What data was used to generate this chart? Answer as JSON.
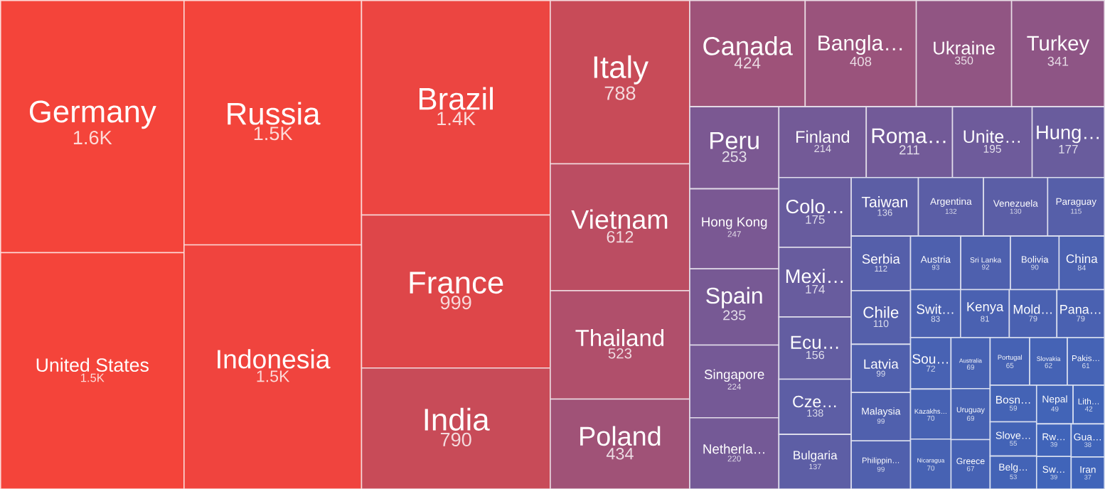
{
  "chart_data": {
    "type": "other",
    "categories": [
      "Germany",
      "United States",
      "Russia",
      "Indonesia",
      "Brazil",
      "France",
      "India",
      "Italy",
      "Vietnam",
      "Thailand",
      "Poland",
      "Canada",
      "Bangla…",
      "Ukraine",
      "Turkey",
      "Peru",
      "Hong Kong",
      "Spain",
      "Singapore",
      "Netherla…",
      "Finland",
      "Roma…",
      "Unite…",
      "Hung…",
      "Colo…",
      "Mexi…",
      "Ecu…",
      "Cze…",
      "Bulgaria",
      "Taiwan",
      "Argentina",
      "Venezuela",
      "Paraguay",
      "Serbia",
      "Chile",
      "Latvia",
      "Malaysia",
      "Philippin…",
      "Austria",
      "Sri Lanka",
      "Bolivia",
      "China",
      "Swit…",
      "Kenya",
      "Mold…",
      "Pana…",
      "Sou…",
      "Kazakhs…",
      "Nicaragua",
      "Australia",
      "Uruguay",
      "Greece",
      "Portugal",
      "Slovakia",
      "Pakis…",
      "Bosn…",
      "Slove…",
      "Belg…",
      "Nepal",
      "Lith…",
      "Rw…",
      "Sw…",
      "Gua…",
      "Iran"
    ],
    "values": [
      1600,
      1500,
      1500,
      1500,
      1400,
      999,
      790,
      788,
      612,
      523,
      434,
      424,
      408,
      350,
      341,
      253,
      247,
      235,
      224,
      220,
      214,
      211,
      195,
      177,
      175,
      174,
      156,
      138,
      137,
      136,
      132,
      130,
      115,
      112,
      110,
      99,
      99,
      99,
      93,
      92,
      90,
      84,
      83,
      81,
      79,
      79,
      72,
      70,
      70,
      69,
      69,
      67,
      65,
      62,
      61,
      59,
      55,
      53,
      49,
      42,
      39,
      39,
      38,
      37
    ],
    "value_labels": [
      "1.6K",
      "1.5K",
      "1.5K",
      "1.5K",
      "1.4K",
      "999",
      "790",
      "788",
      "612",
      "523",
      "434",
      "424",
      "408",
      "350",
      "341",
      "253",
      "247",
      "235",
      "224",
      "220",
      "214",
      "211",
      "195",
      "177",
      "175",
      "174",
      "156",
      "138",
      "137",
      "136",
      "132",
      "130",
      "115",
      "112",
      "110",
      "99",
      "99",
      "99",
      "93",
      "92",
      "90",
      "84",
      "83",
      "81",
      "79",
      "79",
      "72",
      "70",
      "70",
      "69",
      "69",
      "67",
      "65",
      "62",
      "61",
      "59",
      "55",
      "53",
      "49",
      "42",
      "39",
      "39",
      "38",
      "37"
    ],
    "colors": [
      "#f4443a",
      "#f4443a",
      "#f3443b",
      "#f0443e",
      "#ec4541",
      "#de4649",
      "#c84b58",
      "#c84b58",
      "#bb4d62",
      "#b04f6b",
      "#a05277",
      "#9e5279",
      "#9a537c",
      "#915583",
      "#8e5585",
      "#7b5892",
      "#7a5893",
      "#775994",
      "#755996",
      "#745996",
      "#735a97",
      "#725a98",
      "#6e5b9b",
      "#695c9d",
      "#685c9e",
      "#685c9e",
      "#635da1",
      "#5d5ea5",
      "#5d5ea5",
      "#5c5ea5",
      "#5b5ea6",
      "#5b5ea6",
      "#565fa9",
      "#555faa",
      "#545faa",
      "#5060ad",
      "#5060ad",
      "#5060ad",
      "#4e60ae",
      "#4e60ae",
      "#4d60af",
      "#4b61b0",
      "#4b61b0",
      "#4a61b1",
      "#4a61b1",
      "#4a61b1",
      "#4862b3",
      "#4762b3",
      "#4762b3",
      "#4762b3",
      "#4762b3",
      "#4662b4",
      "#4662b4",
      "#4563b5",
      "#4563b5",
      "#4463b5",
      "#4363b6",
      "#4363b6",
      "#4264b7",
      "#4164b8",
      "#4064b9",
      "#4064b9",
      "#4064b9",
      "#4064b9"
    ]
  }
}
